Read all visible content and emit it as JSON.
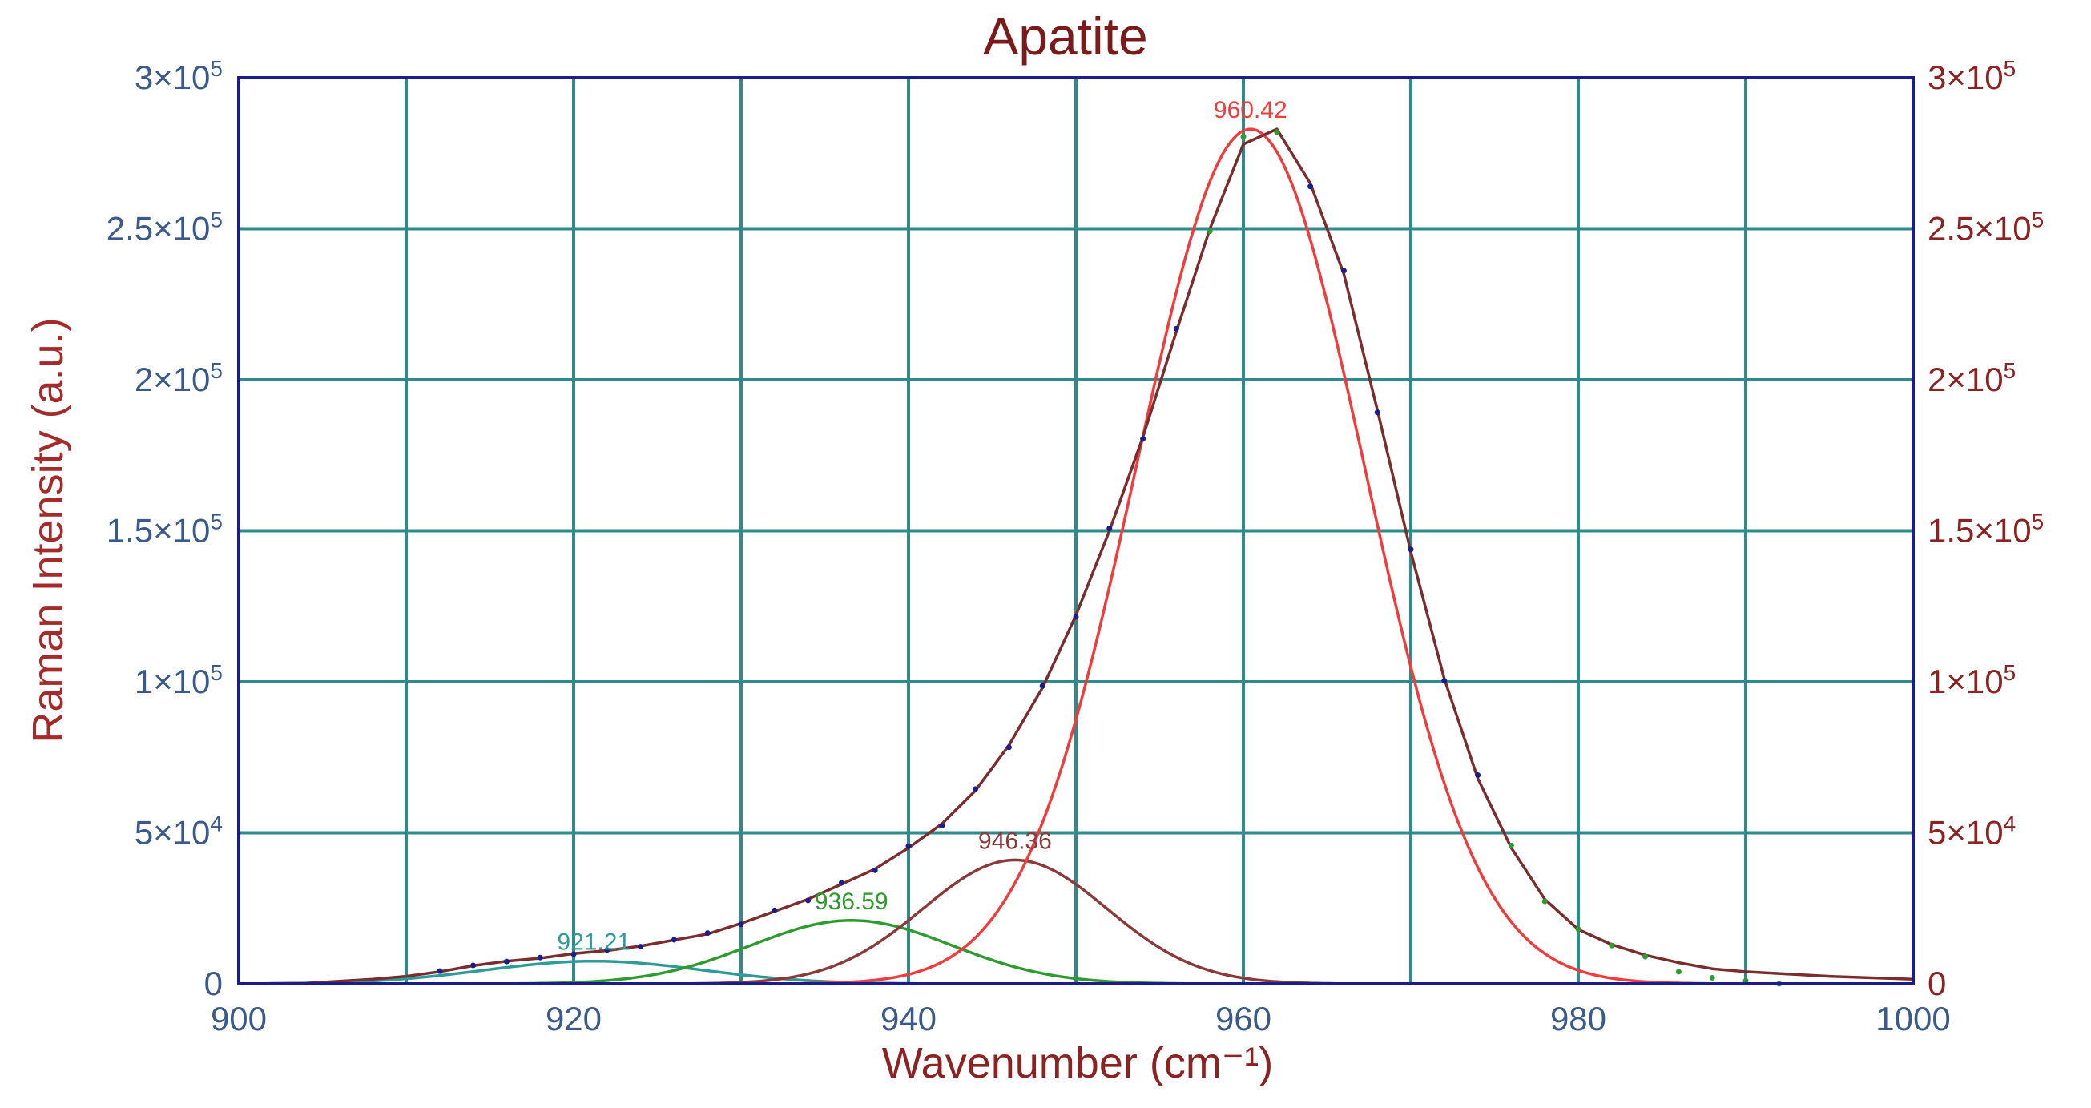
{
  "chart_data": {
    "type": "line",
    "title": "Apatite",
    "xlabel": "Wavenumber (cm⁻¹)",
    "ylabel": "Raman Intensity (a.u.)",
    "xlim": [
      900,
      1000
    ],
    "ylim": [
      0,
      300000
    ],
    "x_ticks": [
      900,
      920,
      940,
      960,
      980,
      1000
    ],
    "x_tick_labels": [
      "900",
      "920",
      "940",
      "960",
      "980",
      "1000"
    ],
    "y_ticks": [
      0,
      50000,
      100000,
      150000,
      200000,
      250000,
      300000
    ],
    "y_tick_labels": [
      {
        "mant": "0",
        "exp": ""
      },
      {
        "mant": "5×10",
        "exp": "4"
      },
      {
        "mant": "1×10",
        "exp": "5"
      },
      {
        "mant": "1.5×10",
        "exp": "5"
      },
      {
        "mant": "2×10",
        "exp": "5"
      },
      {
        "mant": "2.5×10",
        "exp": "5"
      },
      {
        "mant": "3×10",
        "exp": "5"
      }
    ],
    "grid": true,
    "colors": {
      "title": "#7b1a1a",
      "xlabel": "#8b2323",
      "ylabel": "#a52a2a",
      "left_ticks": "#3b5a8c",
      "right_ticks": "#8b2323",
      "grid": "#2e8b8b",
      "frame": "#1c1c8c",
      "data_points": "#1c1c8c",
      "data_points_alt": "#2e9b2e",
      "envelope": "#7b2d2d"
    },
    "envelope": {
      "name": "",
      "x": [
        900,
        904,
        908,
        910,
        912,
        914,
        916,
        918,
        920,
        922,
        924,
        926,
        928,
        930,
        932,
        934,
        936,
        938,
        940,
        942,
        944,
        946,
        948,
        950,
        952,
        954,
        956,
        958,
        960,
        962,
        964,
        966,
        968,
        970,
        972,
        974,
        976,
        978,
        980,
        982,
        984,
        986,
        988,
        990,
        995,
        1000
      ],
      "values": [
        0,
        200,
        1500,
        2500,
        4000,
        6000,
        7500,
        8500,
        10000,
        11000,
        12500,
        14500,
        16500,
        20000,
        24000,
        28000,
        33000,
        38000,
        45000,
        53000,
        64000,
        79000,
        98000,
        122000,
        150000,
        181000,
        216000,
        250000,
        278000,
        283000,
        265000,
        235000,
        190000,
        143000,
        101000,
        68000,
        45000,
        28000,
        18000,
        13000,
        9500,
        7000,
        5000,
        4000,
        2500,
        1500
      ]
    },
    "peaks": [
      {
        "center": 921.21,
        "label": "921.21",
        "amplitude": 7500,
        "sigma": 6.5,
        "color": "#2e9b9b"
      },
      {
        "center": 936.59,
        "label": "936.59",
        "amplitude": 21000,
        "sigma": 6.0,
        "color": "#2e9b2e"
      },
      {
        "center": 946.36,
        "label": "946.36",
        "amplitude": 41000,
        "sigma": 5.5,
        "color": "#8b3a3a"
      },
      {
        "center": 960.42,
        "label": "960.42",
        "amplitude": 283000,
        "sigma": 6.8,
        "color": "#f03c3c"
      }
    ],
    "data_points": {
      "x": [
        912,
        914,
        916,
        918,
        920,
        922,
        924,
        926,
        928,
        930,
        932,
        934,
        936,
        938,
        940,
        942,
        944,
        946,
        948,
        950,
        952,
        954,
        956,
        958,
        960,
        962,
        964,
        966,
        968,
        970,
        972,
        974,
        976,
        978,
        980,
        982,
        984,
        986,
        988,
        990,
        992
      ],
      "values": [
        4200,
        6100,
        7400,
        8700,
        9800,
        11200,
        12300,
        14600,
        16800,
        19700,
        24300,
        27600,
        33400,
        37600,
        45600,
        52400,
        64500,
        78300,
        98600,
        121500,
        150800,
        180400,
        216900,
        249200,
        280500,
        282000,
        264000,
        236100,
        189200,
        143800,
        100300,
        69100,
        45800,
        27300,
        18100,
        12700,
        9000,
        4000,
        2000,
        1000,
        0
      ]
    }
  }
}
